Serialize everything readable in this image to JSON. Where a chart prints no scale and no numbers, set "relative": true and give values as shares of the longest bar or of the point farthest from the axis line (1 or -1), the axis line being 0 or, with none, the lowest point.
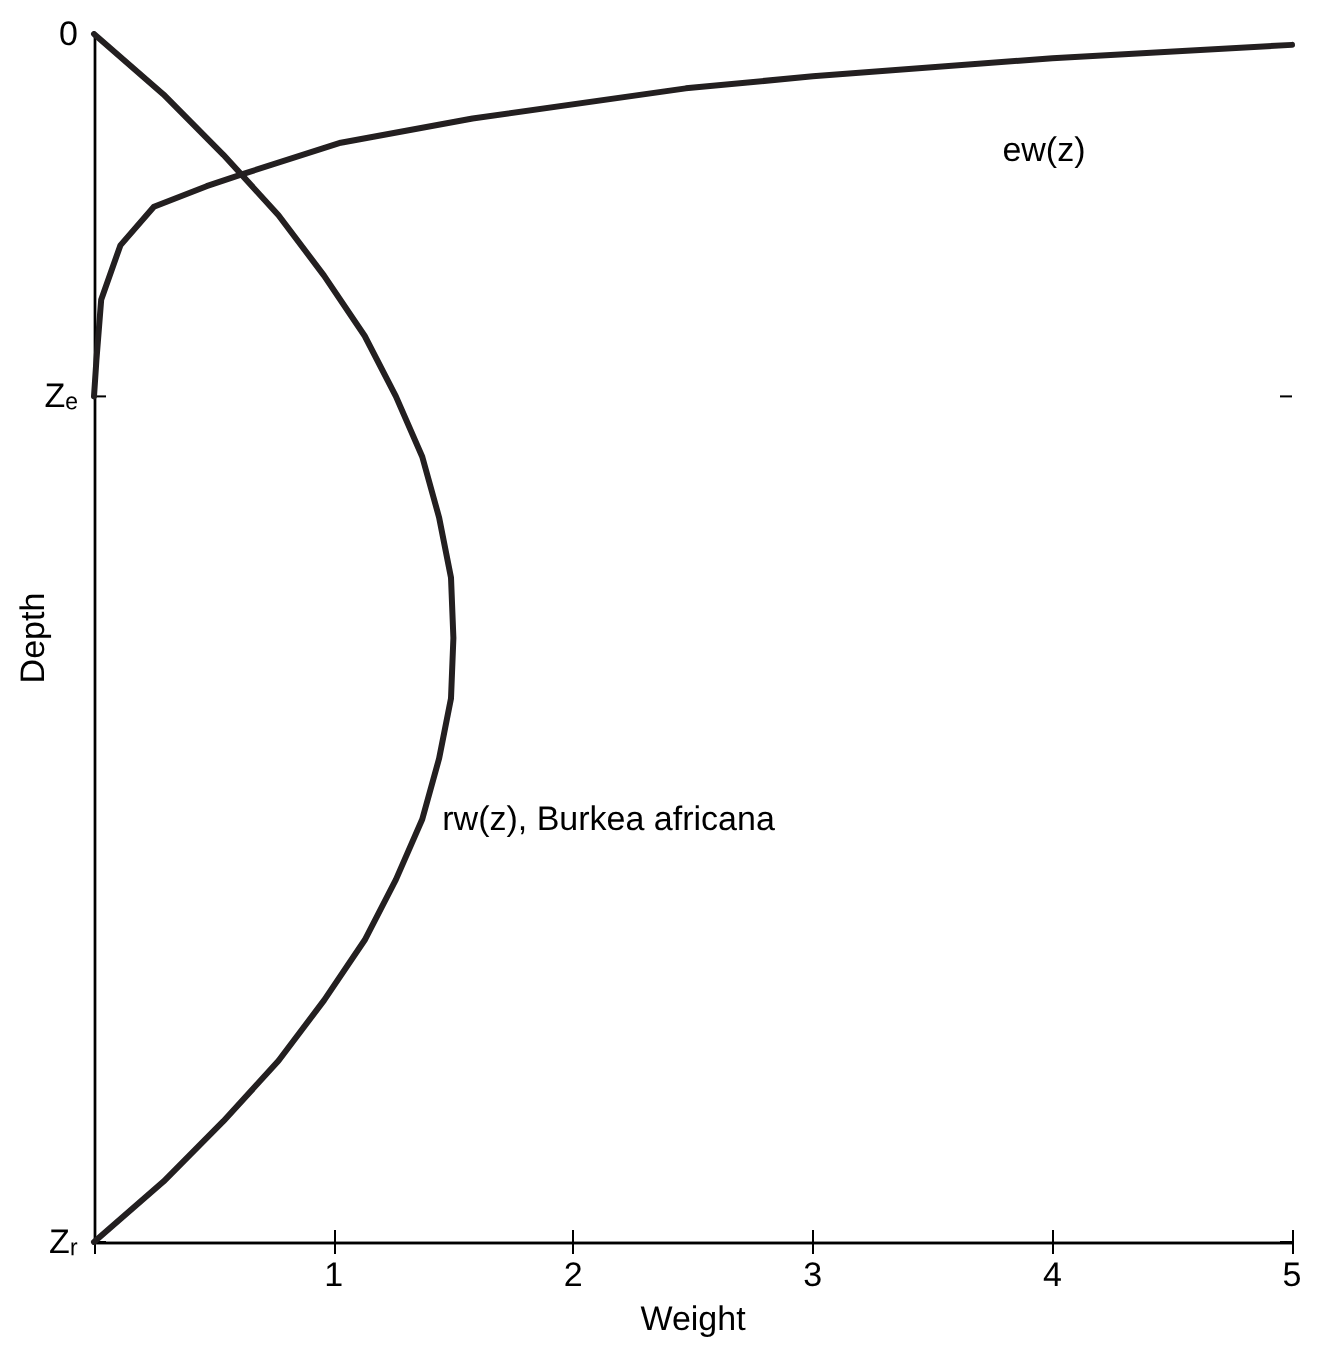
{
  "chart_data": {
    "type": "line",
    "xlabel": "Weight",
    "ylabel": "Depth",
    "xlim": [
      0,
      5
    ],
    "relative": true,
    "xticks": [
      {
        "value": 0,
        "label": null
      },
      1,
      2,
      3,
      4,
      5
    ],
    "grid": false,
    "marker": "none",
    "line_style": "solid",
    "annotations": [
      "0"
    ],
    "ref_lines": [
      {
        "axis": "y",
        "value": 0.7,
        "label": "Zₑ"
      },
      {
        "axis": "y",
        "value": 0,
        "label": "Zᵣ"
      }
    ],
    "series": [
      {
        "name": "rw(z), Burkea africana",
        "color": "#231f20",
        "x": [
          0,
          0.29,
          0.54,
          0.77,
          0.96,
          1.13,
          1.26,
          1.37,
          1.44,
          1.49,
          1.5,
          1.49,
          1.44,
          1.37,
          1.26,
          1.13,
          0.96,
          0.77,
          0.54,
          0.29,
          0
        ],
        "values": [
          1,
          0.95,
          0.9,
          0.85,
          0.8,
          0.75,
          0.7,
          0.65,
          0.6,
          0.55,
          0.5,
          0.45,
          0.4,
          0.35,
          0.3,
          0.25,
          0.2,
          0.15,
          0.1,
          0.05,
          0
        ]
      },
      {
        "name": "ew(z)",
        "color": "#231f20",
        "x": [
          5,
          4,
          3,
          2.47,
          1.58,
          1.03,
          0.62,
          0.47,
          0.25,
          0.11,
          0.03,
          0.01,
          0
        ],
        "values": [
          0.991,
          0.98,
          0.965,
          0.955,
          0.93,
          0.91,
          0.884,
          0.874,
          0.857,
          0.825,
          0.78,
          0.73,
          0.7
        ]
      }
    ]
  }
}
